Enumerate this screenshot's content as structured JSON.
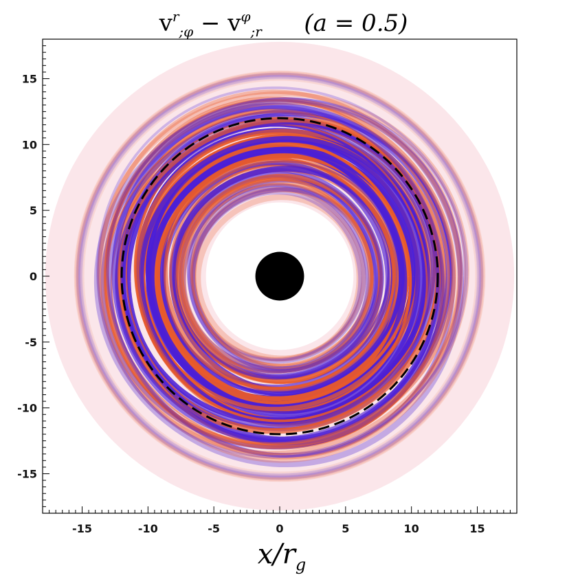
{
  "chart_data": {
    "type": "heatmap",
    "title": {
      "v_char": "v",
      "sub_1": ";φ",
      "sup_1": "r",
      "minus": "−",
      "sub_2": ";r",
      "sup_2": "φ",
      "param": "(a = 0.5)"
    },
    "xlabel": {
      "main": "x/r",
      "sub": "g"
    },
    "ylabel": "",
    "xlim": [
      -18,
      18
    ],
    "ylim": [
      -18,
      18
    ],
    "xticks": [
      -15,
      -10,
      -5,
      0,
      5,
      10,
      15
    ],
    "yticks": [
      -15,
      -10,
      -5,
      0,
      5,
      10,
      15
    ],
    "xtick_labels": [
      "-15",
      "-10",
      "-5",
      "0",
      "5",
      "10",
      "15"
    ],
    "ytick_labels": [
      "-15",
      "-10",
      "-5",
      "0",
      "5",
      "10",
      "15"
    ],
    "minor_tick_step": 0.5,
    "domain_outer_radius": 17.8,
    "active_inner_radius": 6,
    "active_outer_radius": 14,
    "black_hole_radius": 1.85,
    "dashed_circle_radius": 12,
    "colors": {
      "positive": "#e85a2a",
      "negative": "#4b1fd6",
      "background_tint": "#fbe6ea",
      "black_hole": "#000000",
      "dashed_circle": "#000000"
    }
  }
}
